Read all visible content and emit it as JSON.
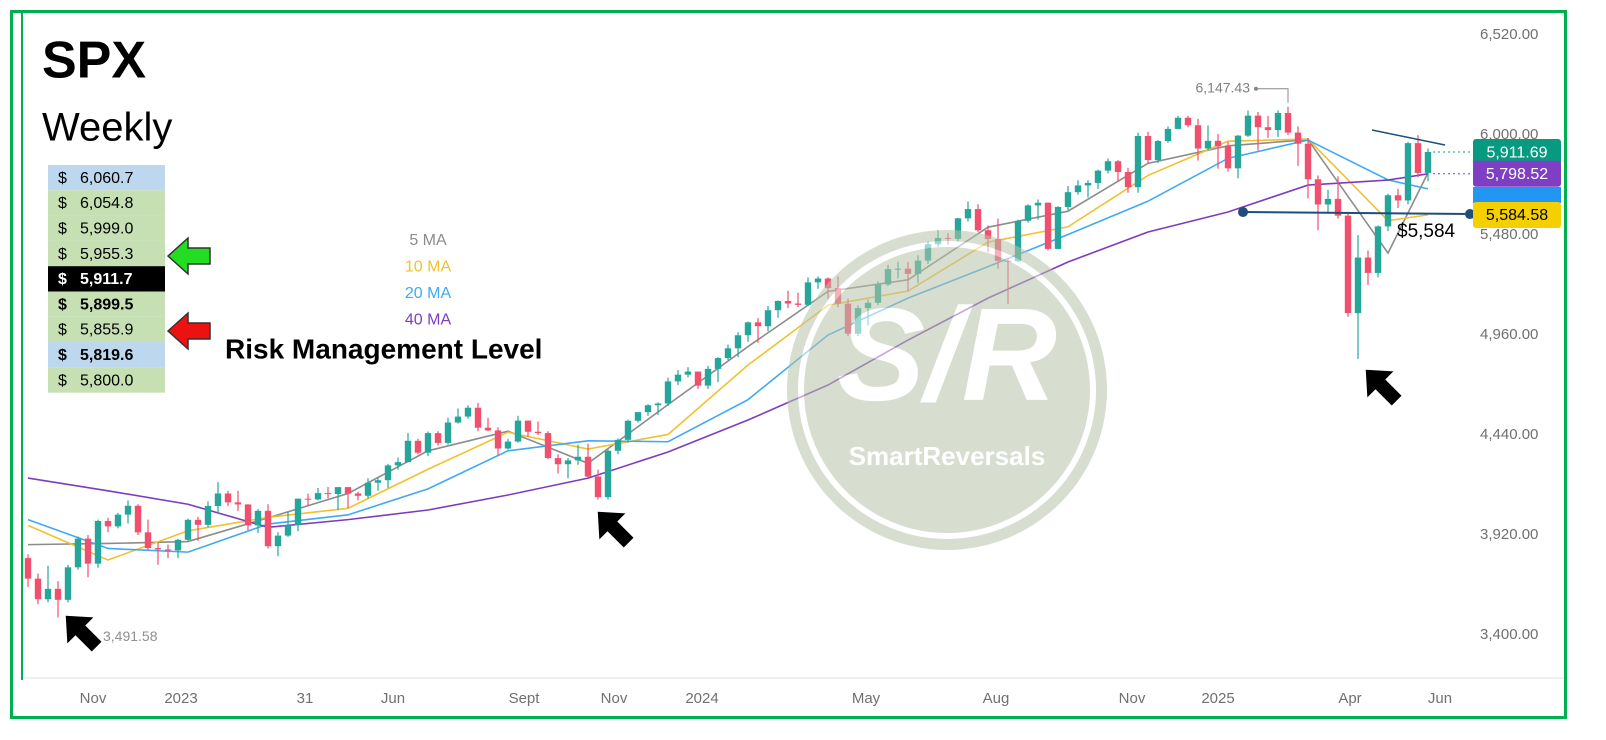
{
  "chart_data": {
    "type": "candlestick",
    "title": "SPX",
    "subtitle": "Weekly",
    "up_color": "#26a69a",
    "down_color": "#f0506e",
    "ylim": [
      3192,
      6640
    ],
    "xlim": [
      -0.6,
      144
    ],
    "yticks": [
      {
        "value": 3400,
        "label": "3,400.00"
      },
      {
        "value": 3920,
        "label": "3,920.00"
      },
      {
        "value": 4440,
        "label": "4,440.00"
      },
      {
        "value": 4960,
        "label": "4,960.00"
      },
      {
        "value": 5480,
        "label": "5,480.00"
      },
      {
        "value": 6000,
        "label": "6,000.00"
      },
      {
        "value": 6520,
        "label": "6,520.00"
      }
    ],
    "xticks": [
      {
        "value": 6.5,
        "label": "Nov"
      },
      {
        "value": 15.3,
        "label": "2023"
      },
      {
        "value": 27.7,
        "label": "31"
      },
      {
        "value": 36.5,
        "label": "Jun"
      },
      {
        "value": 49.6,
        "label": "Sept"
      },
      {
        "value": 58.6,
        "label": "Nov"
      },
      {
        "value": 67.4,
        "label": "2024"
      },
      {
        "value": 83.8,
        "label": "May"
      },
      {
        "value": 96.8,
        "label": "Aug"
      },
      {
        "value": 110.4,
        "label": "Nov"
      },
      {
        "value": 119,
        "label": "2025"
      },
      {
        "value": 132.2,
        "label": "Apr"
      },
      {
        "value": 141.2,
        "label": "Jun"
      }
    ],
    "open": [
      3800,
      3693,
      3586,
      3640,
      3583,
      3752,
      3901,
      3771,
      3993,
      3965,
      4026,
      4072,
      3934,
      3852,
      3845,
      3840,
      3895,
      3999,
      3973,
      4071,
      4136,
      4090,
      4079,
      3970,
      4046,
      3862,
      3917,
      3971,
      4109,
      4105,
      4138,
      4133,
      4169,
      4136,
      4124,
      4192,
      4205,
      4282,
      4299,
      4410,
      4348,
      4450,
      4399,
      4505,
      4536,
      4582,
      4478,
      4464,
      4370,
      4406,
      4515,
      4457,
      4450,
      4320,
      4288,
      4308,
      4327,
      4224,
      4117,
      4358,
      4415,
      4514,
      4559,
      4595,
      4604,
      4719,
      4754,
      4770,
      4697,
      4784,
      4840,
      4891,
      4959,
      5026,
      5006,
      5089,
      5137,
      5124,
      5117,
      5234,
      5254,
      5204,
      5123,
      4967,
      5100,
      5128,
      5223,
      5303,
      5305,
      5278,
      5347,
      5432,
      5465,
      5460,
      5567,
      5615,
      5505,
      5459,
      5346,
      5344,
      5554,
      5634,
      5648,
      5408,
      5626,
      5703,
      5738,
      5751,
      5815,
      5864,
      5808,
      5729,
      5995,
      5870,
      5969,
      6032,
      6090,
      6051,
      5930,
      5970,
      5942,
      5827,
      5997,
      6101,
      6041,
      6026,
      6115,
      6013,
      5955,
      5770,
      5639,
      5668,
      5581,
      5074,
      5363,
      5283,
      5525,
      5687,
      5660,
      5958,
      5803
    ],
    "high": [
      3820,
      3720,
      3760,
      3680,
      3765,
      3912,
      3920,
      4000,
      4010,
      4035,
      4100,
      4080,
      4000,
      3880,
      3870,
      3900,
      4005,
      4015,
      4095,
      4195,
      4150,
      4150,
      4080,
      4055,
      4080,
      3935,
      4040,
      4110,
      4135,
      4165,
      4170,
      4170,
      4170,
      4145,
      4215,
      4215,
      4290,
      4323,
      4450,
      4420,
      4458,
      4460,
      4530,
      4578,
      4595,
      4607,
      4530,
      4480,
      4420,
      4540,
      4515,
      4510,
      4460,
      4340,
      4320,
      4390,
      4395,
      4260,
      4365,
      4422,
      4520,
      4560,
      4600,
      4610,
      4738,
      4778,
      4793,
      4770,
      4800,
      4845,
      4910,
      4975,
      5030,
      5048,
      5111,
      5140,
      5190,
      5180,
      5260,
      5265,
      5260,
      5265,
      5150,
      5115,
      5145,
      5240,
      5325,
      5340,
      5340,
      5375,
      5447,
      5505,
      5490,
      5570,
      5655,
      5640,
      5530,
      5565,
      5360,
      5560,
      5640,
      5665,
      5650,
      5630,
      5735,
      5765,
      5765,
      5820,
      5878,
      5870,
      5830,
      6012,
      6017,
      5975,
      6045,
      6100,
      6100,
      6085,
      6050,
      6005,
      5965,
      6000,
      6128,
      6120,
      6100,
      6128,
      6147.43,
      6045,
      5985,
      5790,
      5715,
      5785,
      5590,
      5480,
      5400,
      5530,
      5695,
      5720,
      5965,
      6000,
      5930
    ],
    "low": [
      3650,
      3560,
      3570,
      3491.58,
      3570,
      3740,
      3700,
      3750,
      3935,
      3955,
      3980,
      3920,
      3840,
      3765,
      3800,
      3800,
      3885,
      3890,
      3960,
      4030,
      4070,
      4045,
      3945,
      3930,
      3850,
      3810,
      3910,
      3940,
      4070,
      4100,
      4110,
      4050,
      4060,
      4100,
      4110,
      4150,
      4165,
      4260,
      4300,
      4340,
      4330,
      4385,
      4390,
      4500,
      4525,
      4460,
      4460,
      4335,
      4365,
      4400,
      4430,
      4440,
      4315,
      4240,
      4215,
      4285,
      4220,
      4105,
      4105,
      4340,
      4400,
      4505,
      4540,
      4545,
      4590,
      4700,
      4740,
      4680,
      4680,
      4715,
      4830,
      4845,
      4925,
      4920,
      4980,
      5050,
      5100,
      5105,
      5110,
      5200,
      5150,
      5105,
      4955,
      4955,
      5010,
      5115,
      5215,
      5255,
      5190,
      5230,
      5330,
      5420,
      5430,
      5445,
      5550,
      5495,
      5390,
      5305,
      5120,
      5340,
      5545,
      5560,
      5400,
      5405,
      5610,
      5690,
      5675,
      5720,
      5800,
      5760,
      5700,
      5700,
      5855,
      5855,
      5960,
      6030,
      6040,
      5867,
      5920,
      5825,
      5810,
      5775,
      5990,
      5920,
      5985,
      5990,
      6000,
      5840,
      5670,
      5505,
      5600,
      5565,
      5055,
      4835,
      5220,
      5260,
      5500,
      5620,
      5640,
      5780,
      5760
    ],
    "close": [
      3693,
      3586,
      3640,
      3583,
      3752,
      3901,
      3771,
      3993,
      3965,
      4026,
      4072,
      3934,
      3852,
      3845,
      3840,
      3895,
      3999,
      3973,
      4071,
      4136,
      4090,
      4079,
      3970,
      4046,
      3862,
      3917,
      3971,
      4109,
      4105,
      4138,
      4133,
      4169,
      4136,
      4124,
      4192,
      4205,
      4282,
      4299,
      4410,
      4348,
      4450,
      4399,
      4505,
      4536,
      4582,
      4478,
      4464,
      4370,
      4406,
      4515,
      4457,
      4450,
      4320,
      4288,
      4308,
      4327,
      4224,
      4117,
      4358,
      4415,
      4514,
      4559,
      4595,
      4604,
      4719,
      4754,
      4770,
      4697,
      4784,
      4840,
      4891,
      4959,
      5026,
      5006,
      5089,
      5137,
      5124,
      5117,
      5234,
      5254,
      5204,
      5123,
      4967,
      5100,
      5128,
      5223,
      5303,
      5305,
      5278,
      5347,
      5432,
      5465,
      5460,
      5567,
      5615,
      5505,
      5459,
      5346,
      5344,
      5554,
      5634,
      5648,
      5408,
      5626,
      5703,
      5738,
      5751,
      5815,
      5864,
      5808,
      5729,
      5995,
      5870,
      5969,
      6032,
      6090,
      6051,
      5930,
      5970,
      5942,
      5827,
      5997,
      6101,
      6041,
      6026,
      6115,
      6013,
      5955,
      5770,
      5639,
      5668,
      5581,
      5074,
      5363,
      5283,
      5525,
      5687,
      5660,
      5958,
      5803,
      5912
    ],
    "series_x": [
      0,
      8,
      16,
      24,
      32,
      40,
      48,
      56,
      64,
      72,
      80,
      88,
      96,
      104,
      112,
      120,
      128,
      136,
      140
    ],
    "series": [
      {
        "name": "5 MA",
        "color": "#8c8c8c",
        "values": [
          3870,
          3876,
          3886,
          4009,
          4136,
          4358,
          4460,
          4293,
          4598,
          4900,
          5187,
          5247,
          5521,
          5604,
          5853,
          5944,
          5976,
          5386,
          5804
        ]
      },
      {
        "name": "10 MA",
        "color": "#f2c12e",
        "values": [
          3970,
          3790,
          3942,
          4012,
          4059,
          4262,
          4454,
          4367,
          4443,
          4804,
          5115,
          5189,
          5443,
          5523,
          5790,
          5968,
          5979,
          5555,
          5585
        ]
      },
      {
        "name": "20 MA",
        "color": "#3fa9f5",
        "values": [
          4000,
          3850,
          3831,
          3977,
          4025,
          4160,
          4358,
          4410,
          4405,
          4624,
          4960,
          5152,
          5316,
          5483,
          5656,
          5879,
          5974,
          5767,
          5720
        ]
      },
      {
        "name": "40 MA",
        "color": "#7d3cbf",
        "values": [
          4216,
          4150,
          4080,
          3960,
          4000,
          4050,
          4128,
          4216,
          4352,
          4518,
          4700,
          4934,
          5152,
          5340,
          5496,
          5600,
          5740,
          5766,
          5798.52
        ]
      }
    ],
    "price_tags": [
      {
        "value": 5911.69,
        "label": "5,911.69",
        "color": "#089981"
      },
      {
        "value": 5798.52,
        "label": "5,798.52",
        "color": "#7e3fc4"
      },
      {
        "value": 5584.58,
        "label": "5,584.58",
        "color": "#f5d000"
      }
    ],
    "high_annotation": {
      "value": 6147.43,
      "label": "6,147.43"
    },
    "low_annotation": {
      "value": 3491.58,
      "label": "3,491.58"
    },
    "support": {
      "value": 5584,
      "label": "$5,584"
    }
  },
  "levels": {
    "currency": "$",
    "rows": [
      {
        "label": "6,060.7",
        "fill": "#bdd7ee"
      },
      {
        "label": "6,054.8",
        "fill": "#c6e0b4"
      },
      {
        "label": "5,999.0",
        "fill": "#c6e0b4"
      },
      {
        "label": "5,955.3",
        "fill": "#c6e0b4"
      },
      {
        "label": "5,911.7",
        "fill": "#000000",
        "bold": true
      },
      {
        "label": "5,899.5",
        "fill": "#c6e0b4",
        "bold": true
      },
      {
        "label": "5,855.9",
        "fill": "#c6e0b4"
      },
      {
        "label": "5,819.6",
        "fill": "#bdd7ee",
        "bold": true
      },
      {
        "label": "5,800.0",
        "fill": "#c6e0b4"
      }
    ],
    "risk_label": "Risk Management Level"
  },
  "watermark": {
    "mark": "S/R",
    "text": "SmartReversals"
  }
}
